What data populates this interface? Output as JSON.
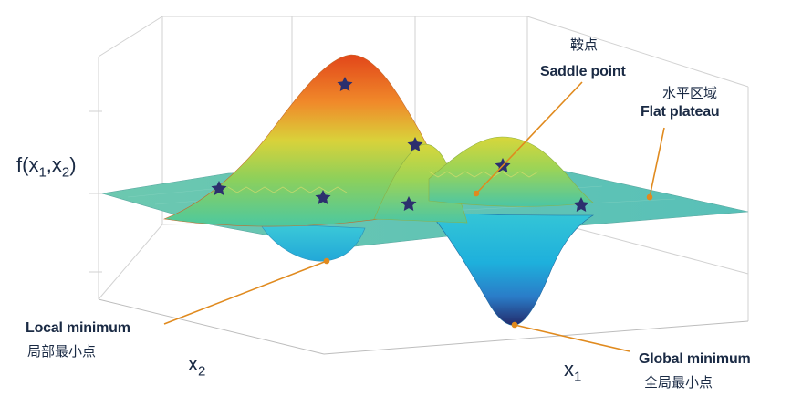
{
  "axes": {
    "z_label": "f(x",
    "z_sub1": "1",
    "z_mid": ",x",
    "z_sub2": "2",
    "z_end": ")",
    "x1_label": "x",
    "x1_sub": "1",
    "x2_label": "x",
    "x2_sub": "2"
  },
  "annotations": {
    "saddle_zh": "鞍点",
    "saddle_en": "Saddle point",
    "plateau_zh": "水平区域",
    "plateau_en": "Flat plateau",
    "local_en": "Local minimum",
    "local_zh": "局部最小点",
    "global_en": "Global minimum",
    "global_zh": "全局最小点"
  },
  "colors": {
    "text": "#1a2a44",
    "arrow": "#e08a1e",
    "star": "#2c2f6e",
    "grid": "#d0d0d0"
  }
}
